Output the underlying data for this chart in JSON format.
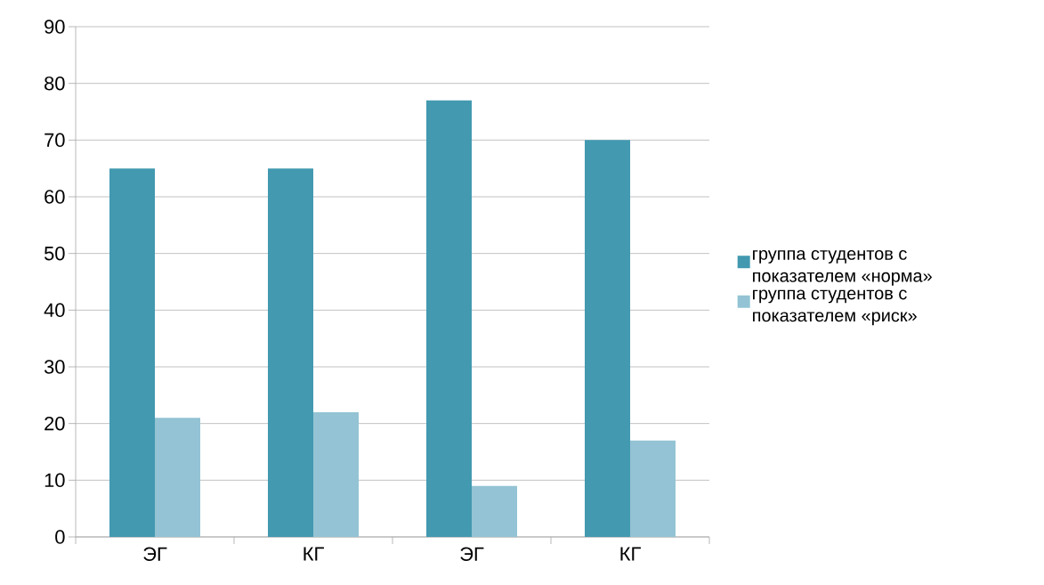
{
  "chart_data": {
    "type": "bar",
    "categories": [
      "ЭГ",
      "КГ",
      "ЭГ",
      "КГ"
    ],
    "series": [
      {
        "name": "группа студентов с показателем «норма»",
        "color": "#4299b0",
        "values": [
          65,
          65,
          77,
          70
        ]
      },
      {
        "name": "группа студентов с показателем «риск»",
        "color": "#93c3d4",
        "values": [
          21,
          22,
          9,
          17
        ]
      }
    ],
    "ylim": [
      0,
      90
    ],
    "yticks": [
      0,
      10,
      20,
      30,
      40,
      50,
      60,
      70,
      80,
      90
    ],
    "grid": "y",
    "legend": "right"
  }
}
